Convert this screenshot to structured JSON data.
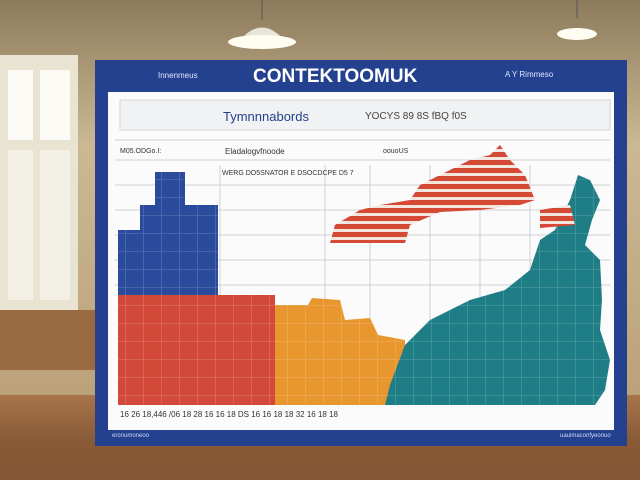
{
  "poster": {
    "title": "CONTEKTOOMUK",
    "header_left": "Innenmeus",
    "header_right": "A Y Rimmeso",
    "subtitle": "Tymnnnabords",
    "subtitle_right": "YOCYS 89 8S  fBQ  f0S",
    "row_label_1": "M05.ODGo.I:",
    "row_label_2": "Eladalogvfnoode",
    "row_label_3": "oouoUS",
    "table_header": "WERG DO5SNATOR E DSOCDCPE D5 7",
    "axis_ticks": "16  26  18,446  /06  18  28  16  16  18  DS  16  16  18  18  32  16  18  18",
    "footer_left": "eronumoneoo",
    "footer_right": "uauimaconfyeonuo",
    "colors": {
      "frame": "#24418f",
      "blue": "#2a4a9c",
      "red": "#d2493a",
      "orange": "#e8962e",
      "teal": "#1f7d86"
    }
  }
}
